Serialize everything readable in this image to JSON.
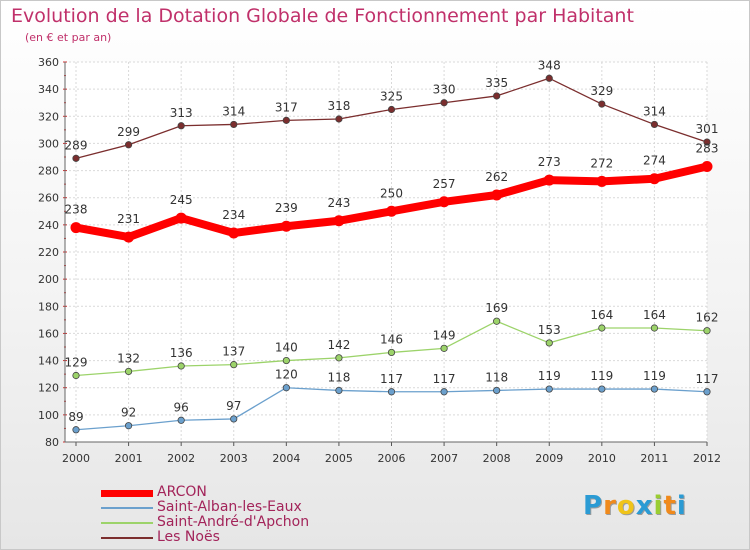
{
  "title": "Evolution de la Dotation Globale de Fonctionnement par Habitant",
  "subtitle": "(en € et par an)",
  "chart_data": {
    "type": "line",
    "title": "Evolution de la Dotation Globale de Fonctionnement par Habitant",
    "subtitle": "(en € et par an)",
    "categories": [
      "2000",
      "2001",
      "2002",
      "2003",
      "2004",
      "2005",
      "2006",
      "2007",
      "2008",
      "2009",
      "2010",
      "2011",
      "2012"
    ],
    "ylim": [
      80,
      360
    ],
    "yticks": [
      80,
      100,
      120,
      140,
      160,
      180,
      200,
      220,
      240,
      260,
      280,
      300,
      320,
      340,
      360
    ],
    "grid": true,
    "legend_position": "bottom-left",
    "series": [
      {
        "name": "ARCON",
        "color": "#ff0000",
        "values": [
          238,
          231,
          245,
          234,
          239,
          243,
          250,
          257,
          262,
          273,
          272,
          274,
          283
        ]
      },
      {
        "name": "Saint-Alban-les-Eaux",
        "color": "#6ba0cd",
        "values": [
          89,
          92,
          96,
          97,
          120,
          118,
          117,
          117,
          118,
          119,
          119,
          119,
          117
        ]
      },
      {
        "name": "Saint-André-d'Apchon",
        "color": "#9cd36a",
        "values": [
          129,
          132,
          136,
          137,
          140,
          142,
          146,
          149,
          169,
          153,
          164,
          164,
          162
        ]
      },
      {
        "name": "Les Noës",
        "color": "#7b2e2e",
        "values": [
          289,
          299,
          313,
          314,
          317,
          318,
          325,
          330,
          335,
          348,
          329,
          314,
          301
        ]
      }
    ]
  },
  "logo": {
    "letters": [
      "P",
      "r",
      "o",
      "x",
      "i",
      "t",
      "i"
    ],
    "colors": [
      "#2b9bd4",
      "#f08a1c",
      "#f0c419",
      "#2b9bd4",
      "#9acd32",
      "#f08a1c",
      "#2b9bd4"
    ]
  }
}
